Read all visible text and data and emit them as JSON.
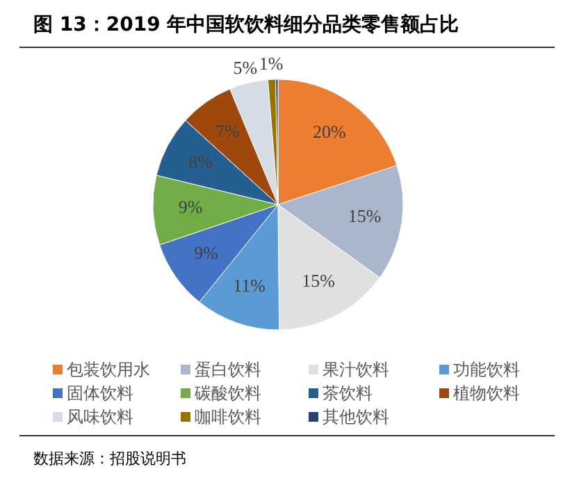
{
  "chart_data": {
    "type": "pie",
    "title": "图 13：2019 年中国软饮料细分品类零售额占比",
    "categories": [
      "包装饮用水",
      "蛋白饮料",
      "果汁饮料",
      "功能饮料",
      "固体饮料",
      "碳酸饮料",
      "茶饮料",
      "植物饮料",
      "风味饮料",
      "咖啡饮料",
      "其他饮料"
    ],
    "values": [
      20,
      15,
      15,
      11,
      9,
      9,
      8,
      7,
      5,
      1,
      0.3
    ],
    "value_labels": [
      "20%",
      "15%",
      "15%",
      "11%",
      "9%",
      "9%",
      "8%",
      "7%",
      "5%",
      "1%",
      null
    ],
    "colors": [
      "#ed7d31",
      "#a9b6cb",
      "#e0e0e0",
      "#5b9bd5",
      "#4472c4",
      "#70ad47",
      "#255e91",
      "#9e480e",
      "#d6dce5",
      "#997300",
      "#264478"
    ],
    "legend": "bottom",
    "annotations": [
      "数据来源：招股说明书"
    ]
  }
}
